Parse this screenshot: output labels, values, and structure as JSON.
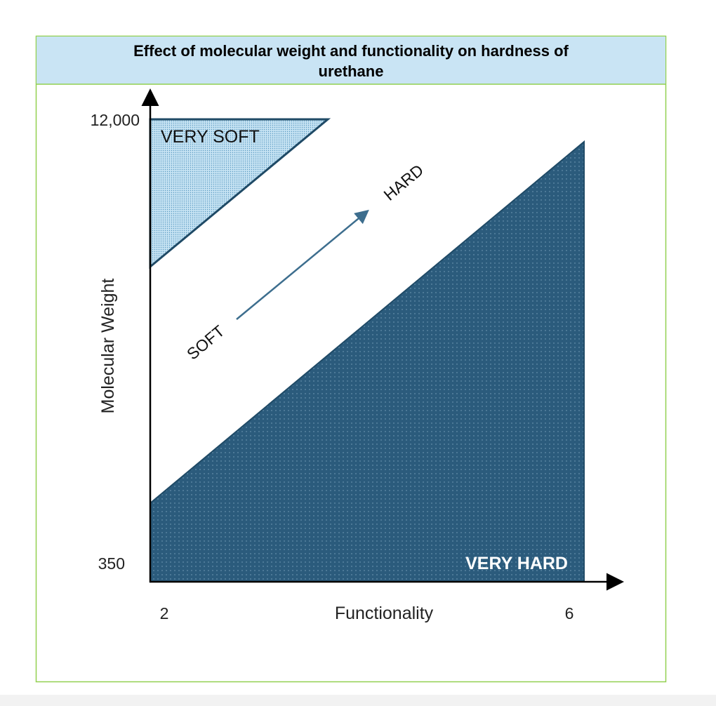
{
  "title": "Effect of molecular weight and functionality on hardness of urethane",
  "title_line1": "Effect of molecular weight and functionality on hardness of",
  "title_line2": "urethane",
  "y_axis": {
    "label": "Molecular Weight",
    "max_label": "12,000",
    "min_label": "350"
  },
  "x_axis": {
    "label": "Functionality",
    "min_label": "2",
    "max_label": "6"
  },
  "regions": {
    "very_soft": "VERY SOFT",
    "very_hard": "VERY HARD",
    "soft": "SOFT",
    "hard": "HARD"
  },
  "colors": {
    "header_bg": "#c9e4f4",
    "border": "#92d050",
    "very_hard_fill": "#2b5b7c",
    "very_soft_fill": "#b9dcef",
    "outline": "#1f4a66",
    "arrow": "#3d6e8e"
  }
}
